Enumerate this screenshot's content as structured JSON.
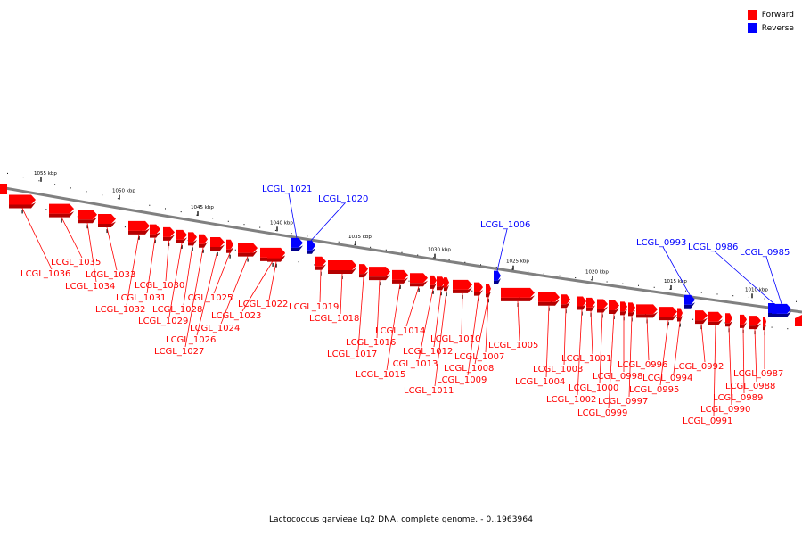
{
  "legend": [
    {
      "label": "Forward",
      "color": "#ff0000"
    },
    {
      "label": "Reverse",
      "color": "#0000ff"
    }
  ],
  "caption": "Lactococcus garvieae Lg2 DNA, complete genome. - 0..1963964",
  "colors": {
    "forward": "#ff0000",
    "forward_dark": "#b40000",
    "reverse": "#0000ff",
    "reverse_dark": "#00008c",
    "backbone": "#808080"
  },
  "kbp_ticks": [
    "1055 kbp",
    "1050 kbp",
    "1045 kbp",
    "1040 kbp",
    "1035 kbp",
    "1030 kbp",
    "1025 kbp",
    "1020 kbp",
    "1015 kbp",
    "1010 kbp"
  ],
  "genes": [
    {
      "id": "LCGL_1036",
      "strand": "forward"
    },
    {
      "id": "LCGL_1035",
      "strand": "forward"
    },
    {
      "id": "LCGL_1034",
      "strand": "forward"
    },
    {
      "id": "LCGL_1033",
      "strand": "forward"
    },
    {
      "id": "LCGL_1032",
      "strand": "forward"
    },
    {
      "id": "LCGL_1031",
      "strand": "forward"
    },
    {
      "id": "LCGL_1030",
      "strand": "forward"
    },
    {
      "id": "LCGL_1029",
      "strand": "forward"
    },
    {
      "id": "LCGL_1028",
      "strand": "forward"
    },
    {
      "id": "LCGL_1027",
      "strand": "forward"
    },
    {
      "id": "LCGL_1026",
      "strand": "forward"
    },
    {
      "id": "LCGL_1025",
      "strand": "forward"
    },
    {
      "id": "LCGL_1024",
      "strand": "forward"
    },
    {
      "id": "LCGL_1023",
      "strand": "forward"
    },
    {
      "id": "LCGL_1022",
      "strand": "forward"
    },
    {
      "id": "LCGL_1021",
      "strand": "reverse"
    },
    {
      "id": "LCGL_1020",
      "strand": "reverse"
    },
    {
      "id": "LCGL_1019",
      "strand": "forward"
    },
    {
      "id": "LCGL_1018",
      "strand": "forward"
    },
    {
      "id": "LCGL_1017",
      "strand": "forward"
    },
    {
      "id": "LCGL_1016",
      "strand": "forward"
    },
    {
      "id": "LCGL_1015",
      "strand": "forward"
    },
    {
      "id": "LCGL_1014",
      "strand": "forward"
    },
    {
      "id": "LCGL_1013",
      "strand": "forward"
    },
    {
      "id": "LCGL_1012",
      "strand": "forward"
    },
    {
      "id": "LCGL_1011",
      "strand": "forward"
    },
    {
      "id": "LCGL_1010",
      "strand": "forward"
    },
    {
      "id": "LCGL_1009",
      "strand": "forward"
    },
    {
      "id": "LCGL_1008",
      "strand": "forward"
    },
    {
      "id": "LCGL_1007",
      "strand": "forward"
    },
    {
      "id": "LCGL_1006",
      "strand": "reverse"
    },
    {
      "id": "LCGL_1005",
      "strand": "forward"
    },
    {
      "id": "LCGL_1004",
      "strand": "forward"
    },
    {
      "id": "LCGL_1003",
      "strand": "forward"
    },
    {
      "id": "LCGL_1002",
      "strand": "forward"
    },
    {
      "id": "LCGL_1001",
      "strand": "forward"
    },
    {
      "id": "LCGL_1000",
      "strand": "forward"
    },
    {
      "id": "LCGL_0999",
      "strand": "forward"
    },
    {
      "id": "LCGL_0998",
      "strand": "forward"
    },
    {
      "id": "LCGL_0997",
      "strand": "forward"
    },
    {
      "id": "LCGL_0996",
      "strand": "forward"
    },
    {
      "id": "LCGL_0995",
      "strand": "forward"
    },
    {
      "id": "LCGL_0994",
      "strand": "forward"
    },
    {
      "id": "LCGL_0993",
      "strand": "reverse"
    },
    {
      "id": "LCGL_0992",
      "strand": "forward"
    },
    {
      "id": "LCGL_0991",
      "strand": "forward"
    },
    {
      "id": "LCGL_0990",
      "strand": "forward"
    },
    {
      "id": "LCGL_0989",
      "strand": "forward"
    },
    {
      "id": "LCGL_0988",
      "strand": "forward"
    },
    {
      "id": "LCGL_0987",
      "strand": "forward"
    },
    {
      "id": "LCGL_0986",
      "strand": "reverse"
    },
    {
      "id": "LCGL_0985",
      "strand": "reverse"
    }
  ]
}
